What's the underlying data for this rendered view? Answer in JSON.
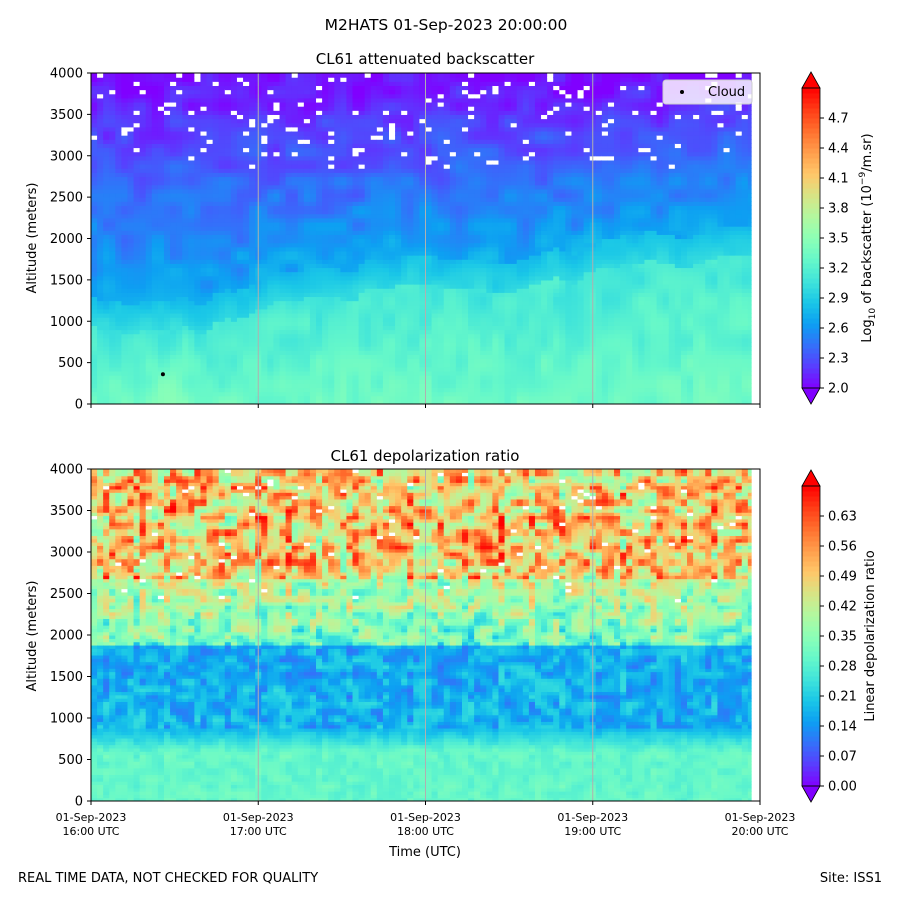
{
  "figure": {
    "suptitle": "M2HATS 01-Sep-2023 20:00:00",
    "footer_left": "REAL TIME DATA, NOT CHECKED FOR QUALITY",
    "footer_right": "Site: ISS1"
  },
  "colors": {
    "rainbow": [
      "#8000ff",
      "#5a3cfe",
      "#3470fa",
      "#0d9ff2",
      "#1ac7e7",
      "#40e4da",
      "#66f8c9",
      "#8cffb6",
      "#b2f89f",
      "#d8e485",
      "#ffc769",
      "#ff9e4c",
      "#ff702e",
      "#ff3c16",
      "#ff0000"
    ],
    "grid": "#b0b0b0",
    "cloud_marker": "#000000",
    "saturated": "#ffffff"
  },
  "chart_data": [
    {
      "type": "heatmap",
      "title": "CL61 attenuated backscatter",
      "xlabel": "",
      "ylabel": "Altitude (meters)",
      "x_range_hours_utc": [
        16.0,
        20.0
      ],
      "x_ticks_hours": [
        16,
        17,
        18,
        19,
        20
      ],
      "x_tick_labels_line1": [
        "",
        "",
        "",
        "",
        ""
      ],
      "x_tick_labels_line2": [
        "",
        "",
        "",
        "",
        ""
      ],
      "ylim": [
        0,
        4000
      ],
      "y_ticks": [
        0,
        500,
        1000,
        1500,
        2000,
        2500,
        3000,
        3500,
        4000
      ],
      "grid": "x",
      "legend": {
        "placement": "top-right",
        "entries": [
          "Cloud"
        ]
      },
      "cloud_points": [
        {
          "time_hours": 16.43,
          "altitude_m": 360
        }
      ],
      "colorbar": {
        "label": "Log10 of backscatter (10^-9/m.sr)",
        "label_parts": {
          "pre": "Log",
          "sub": "10",
          "mid": " of backscatter (10",
          "sup": "−9",
          "post": "/m.sr)"
        },
        "range": [
          2.0,
          5.0
        ],
        "ticks": [
          "2.0",
          "2.3",
          "2.6",
          "2.9",
          "3.2",
          "3.5",
          "3.8",
          "4.1",
          "4.4",
          "4.7"
        ],
        "extend": "both"
      },
      "field_description": {
        "boundary_layer_top_m": [
          [
            16.0,
            1000
          ],
          [
            16.3,
            900
          ],
          [
            16.6,
            880
          ],
          [
            16.9,
            1050
          ],
          [
            17.2,
            1200
          ],
          [
            17.5,
            1300
          ],
          [
            17.8,
            1400
          ],
          [
            18.1,
            1420
          ],
          [
            18.4,
            1380
          ],
          [
            18.7,
            1450
          ],
          [
            19.0,
            1550
          ],
          [
            19.3,
            1650
          ],
          [
            19.6,
            1750
          ],
          [
            19.95,
            1800
          ]
        ],
        "surface_value": 3.35,
        "aloft_value": 2.3,
        "top_value": 2.05,
        "saturated_gaps_above_m": 2850,
        "data_end_hours": 19.95
      }
    },
    {
      "type": "heatmap",
      "title": "CL61 depolarization ratio",
      "xlabel": "Time (UTC)",
      "ylabel": "Altitude (meters)",
      "x_range_hours_utc": [
        16.0,
        20.0
      ],
      "x_ticks_hours": [
        16,
        17,
        18,
        19,
        20
      ],
      "x_tick_labels_line1": [
        "01-Sep-2023",
        "01-Sep-2023",
        "01-Sep-2023",
        "01-Sep-2023",
        "01-Sep-2023"
      ],
      "x_tick_labels_line2": [
        "16:00 UTC",
        "17:00 UTC",
        "18:00 UTC",
        "19:00 UTC",
        "20:00 UTC"
      ],
      "ylim": [
        0,
        4000
      ],
      "y_ticks": [
        0,
        500,
        1000,
        1500,
        2000,
        2500,
        3000,
        3500,
        4000
      ],
      "grid": "x",
      "colorbar": {
        "label": "Linear depolarization ratio",
        "range": [
          0.0,
          0.7
        ],
        "ticks": [
          "0.00",
          "0.07",
          "0.14",
          "0.21",
          "0.28",
          "0.35",
          "0.42",
          "0.49",
          "0.56",
          "0.63"
        ],
        "extend": "both"
      },
      "field_description": {
        "surface_value": 0.3,
        "low_band_value": 0.17,
        "low_band_m": [
          900,
          1900
        ],
        "mid_value": 0.36,
        "upper_value": 0.5,
        "data_end_hours": 19.95
      }
    }
  ]
}
